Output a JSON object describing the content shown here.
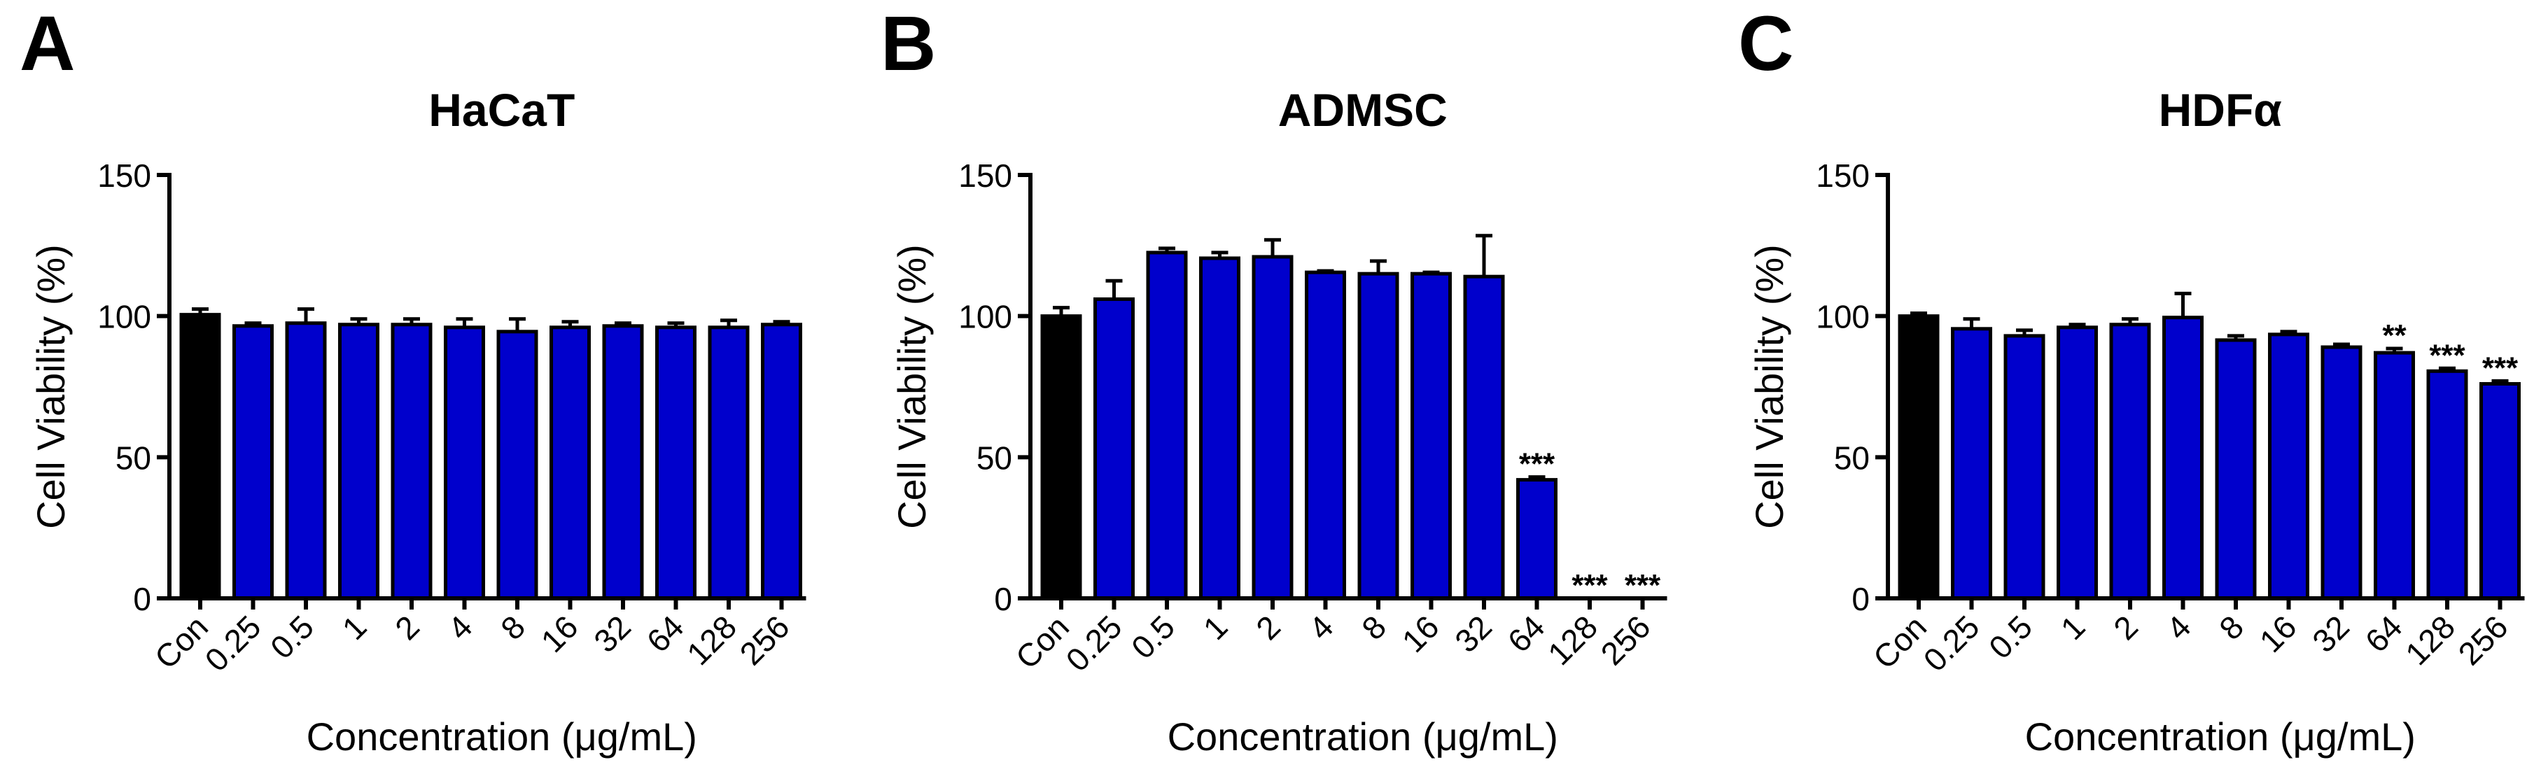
{
  "chart_data": [
    {
      "type": "bar",
      "panel": "A",
      "title": "HaCaT",
      "xlabel": "Concentration (μg/mL)",
      "ylabel": "Cell Viability (%)",
      "ylim": [
        0,
        150
      ],
      "yticks": [
        "0",
        "50",
        "100",
        "150"
      ],
      "categories": [
        "Con",
        "0.25",
        "0.5",
        "1",
        "2",
        "4",
        "8",
        "16",
        "32",
        "64",
        "128",
        "256"
      ],
      "values": [
        100.5,
        96.5,
        97.5,
        97,
        97,
        96,
        94.5,
        96,
        96.5,
        96,
        96,
        97
      ],
      "errors": [
        2,
        1,
        5,
        2,
        2,
        3,
        4.5,
        2,
        1,
        1.5,
        2.5,
        1
      ],
      "significance": [
        "",
        "",
        "",
        "",
        "",
        "",
        "",
        "",
        "",
        "",
        "",
        ""
      ],
      "colors": [
        "#000000",
        "#0000cc",
        "#0000cc",
        "#0000cc",
        "#0000cc",
        "#0000cc",
        "#0000cc",
        "#0000cc",
        "#0000cc",
        "#0000cc",
        "#0000cc",
        "#0000cc"
      ]
    },
    {
      "type": "bar",
      "panel": "B",
      "title": "ADMSC",
      "xlabel": "Concentration (μg/mL)",
      "ylabel": "Cell Viability (%)",
      "ylim": [
        0,
        150
      ],
      "yticks": [
        "0",
        "50",
        "100",
        "150"
      ],
      "categories": [
        "Con",
        "0.25",
        "0.5",
        "1",
        "2",
        "4",
        "8",
        "16",
        "32",
        "64",
        "128",
        "256"
      ],
      "values": [
        100,
        106,
        122.5,
        120.5,
        121,
        115.5,
        115,
        115,
        114,
        42,
        0,
        0
      ],
      "errors": [
        3,
        6.5,
        1.5,
        2,
        6,
        0.5,
        4.5,
        0.5,
        14.5,
        1,
        0,
        0
      ],
      "significance": [
        "",
        "",
        "",
        "",
        "",
        "",
        "",
        "",
        "",
        "***",
        "***",
        "***"
      ],
      "colors": [
        "#000000",
        "#0000cc",
        "#0000cc",
        "#0000cc",
        "#0000cc",
        "#0000cc",
        "#0000cc",
        "#0000cc",
        "#0000cc",
        "#0000cc",
        "#0000cc",
        "#0000cc"
      ]
    },
    {
      "type": "bar",
      "panel": "C",
      "title": "HDFα",
      "xlabel": "Concentration (μg/mL)",
      "ylabel": "Cell Viability (%)",
      "ylim": [
        0,
        150
      ],
      "yticks": [
        "0",
        "50",
        "100",
        "150"
      ],
      "categories": [
        "Con",
        "0.25",
        "0.5",
        "1",
        "2",
        "4",
        "8",
        "16",
        "32",
        "64",
        "128",
        "256"
      ],
      "values": [
        100,
        95.5,
        93,
        96,
        97,
        99.5,
        91.5,
        93.5,
        89,
        87,
        80.5,
        76
      ],
      "errors": [
        1,
        3.5,
        2,
        1,
        2,
        8.5,
        1.5,
        1,
        1,
        1.5,
        1,
        1
      ],
      "significance": [
        "",
        "",
        "",
        "",
        "",
        "",
        "",
        "",
        "",
        "**",
        "***",
        "***"
      ],
      "colors": [
        "#000000",
        "#0000cc",
        "#0000cc",
        "#0000cc",
        "#0000cc",
        "#0000cc",
        "#0000cc",
        "#0000cc",
        "#0000cc",
        "#0000cc",
        "#0000cc",
        "#0000cc"
      ]
    }
  ]
}
